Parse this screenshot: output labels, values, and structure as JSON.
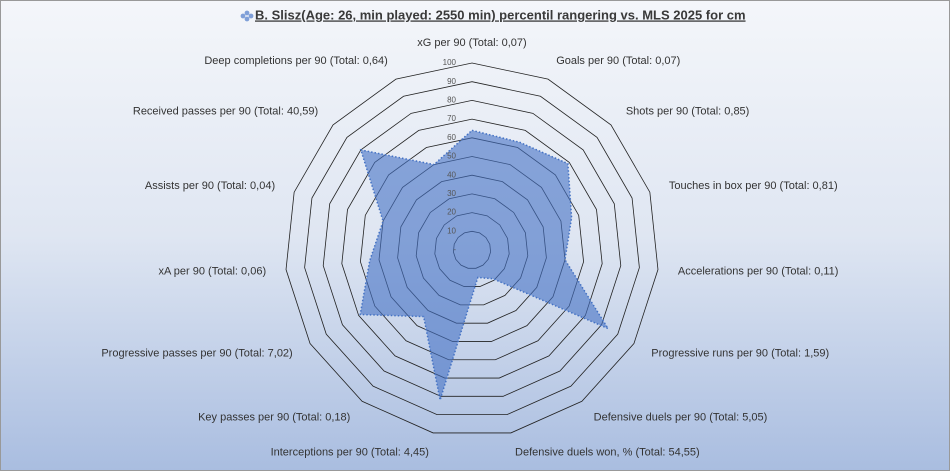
{
  "chart_data": {
    "type": "radar",
    "title": "B. Slisz(Age: 26, min played: 2550 min) percentil rangering vs. MLS 2025 for cm",
    "categories": [
      "xG per 90 (Total: 0,07)",
      "Goals per 90 (Total: 0,07)",
      "Shots per 90 (Total: 0,85)",
      "Touches in box per 90 (Total: 0,81)",
      "Accelerations per 90 (Total: 0,11)",
      "Progressive runs per 90 (Total: 1,59)",
      "Defensive duels per 90 (Total: 5,05)",
      "Defensive duels won, % (Total: 54,55)",
      "Interceptions per 90 (Total: 4,45)",
      "Key passes per 90 (Total: 0,18)",
      "Progressive passes per 90 (Total: 7,02)",
      "xA per 90 (Total: 0,06)",
      "Assists per 90 (Total: 0,04)",
      "Received passes per 90 (Total: 40,59)",
      "Deep completions per 90 (Total: 0,64)"
    ],
    "values": [
      64,
      63,
      69,
      56,
      50,
      84,
      19,
      15,
      82,
      44,
      69,
      55,
      50,
      80,
      50
    ],
    "color": "#4472c4",
    "ylim": [
      0,
      100
    ],
    "yticks": [
      {
        "value": 0,
        "label": "-"
      },
      10,
      20,
      30,
      40,
      50,
      60,
      70,
      80,
      90,
      100
    ]
  }
}
